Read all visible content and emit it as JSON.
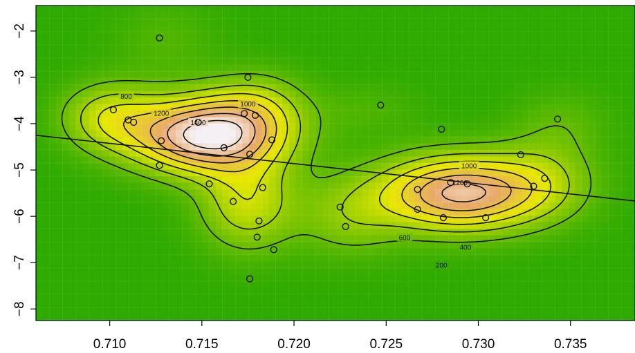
{
  "chart_data": {
    "type": "heatmap",
    "title": "",
    "xlabel": "",
    "ylabel": "",
    "xlim": [
      0.706,
      0.7385
    ],
    "ylim": [
      -8.25,
      -1.45
    ],
    "x_ticks": [
      {
        "value": 0.71,
        "label": "0.710"
      },
      {
        "value": 0.715,
        "label": "0.715"
      },
      {
        "value": 0.72,
        "label": "0.720"
      },
      {
        "value": 0.725,
        "label": "0.725"
      },
      {
        "value": 0.73,
        "label": "0.730"
      },
      {
        "value": 0.735,
        "label": "0.735"
      }
    ],
    "y_ticks": [
      {
        "value": -2,
        "label": "−2"
      },
      {
        "value": -3,
        "label": "−3"
      },
      {
        "value": -4,
        "label": "−4"
      },
      {
        "value": -5,
        "label": "−5"
      },
      {
        "value": -6,
        "label": "−6"
      },
      {
        "value": -7,
        "label": "−7"
      },
      {
        "value": -8,
        "label": "−8"
      }
    ],
    "grid": true,
    "colors": {
      "low": "#2eaa00",
      "mid": "#e8e800",
      "high": "#f4f0f4"
    },
    "density_peaks": [
      {
        "x": 0.7153,
        "y": -4.25,
        "height": 1500,
        "sx": 0.0028,
        "sy": 0.55
      },
      {
        "x": 0.71,
        "y": -3.85,
        "height": 500,
        "sx": 0.0018,
        "sy": 0.5
      },
      {
        "x": 0.7175,
        "y": -5.7,
        "height": 550,
        "sx": 0.0018,
        "sy": 0.7
      },
      {
        "x": 0.718,
        "y": -3.6,
        "height": 350,
        "sx": 0.0018,
        "sy": 0.5
      },
      {
        "x": 0.729,
        "y": -5.5,
        "height": 1250,
        "sx": 0.003,
        "sy": 0.55
      },
      {
        "x": 0.7335,
        "y": -5.2,
        "height": 300,
        "sx": 0.002,
        "sy": 0.6
      },
      {
        "x": 0.723,
        "y": -6.0,
        "height": 300,
        "sx": 0.002,
        "sy": 0.6
      },
      {
        "x": 0.7345,
        "y": -4.0,
        "height": 150,
        "sx": 0.0018,
        "sy": 0.5
      },
      {
        "x": 0.713,
        "y": -2.2,
        "height": 120,
        "sx": 0.002,
        "sy": 0.6
      },
      {
        "x": 0.724,
        "y": -3.7,
        "height": 100,
        "sx": 0.002,
        "sy": 0.4
      }
    ],
    "contour_levels": [
      200,
      400,
      600,
      800,
      1000,
      1200,
      1400
    ],
    "contour_labels": [
      {
        "text": "200",
        "x": 0.728,
        "y": -7.05
      },
      {
        "text": "400",
        "x": 0.7293,
        "y": -6.66
      },
      {
        "text": "600",
        "x": 0.726,
        "y": -6.45
      },
      {
        "text": "800",
        "x": 0.7109,
        "y": -3.4
      },
      {
        "text": "1000",
        "x": 0.7175,
        "y": -3.57
      },
      {
        "text": "1000",
        "x": 0.7295,
        "y": -4.9
      },
      {
        "text": "1200",
        "x": 0.7128,
        "y": -3.77
      },
      {
        "text": "1200",
        "x": 0.729,
        "y": -5.27
      },
      {
        "text": "1400",
        "x": 0.7148,
        "y": -3.97
      }
    ],
    "points": [
      {
        "x": 0.7127,
        "y": -2.15
      },
      {
        "x": 0.7175,
        "y": -3.0
      },
      {
        "x": 0.7102,
        "y": -3.7
      },
      {
        "x": 0.711,
        "y": -3.92
      },
      {
        "x": 0.7113,
        "y": -3.97
      },
      {
        "x": 0.7148,
        "y": -3.97
      },
      {
        "x": 0.7173,
        "y": -3.78
      },
      {
        "x": 0.7179,
        "y": -3.82
      },
      {
        "x": 0.7128,
        "y": -4.37
      },
      {
        "x": 0.7162,
        "y": -4.52
      },
      {
        "x": 0.7176,
        "y": -4.66
      },
      {
        "x": 0.7188,
        "y": -4.35
      },
      {
        "x": 0.7127,
        "y": -4.9
      },
      {
        "x": 0.7154,
        "y": -5.3
      },
      {
        "x": 0.7183,
        "y": -5.38
      },
      {
        "x": 0.7167,
        "y": -5.68
      },
      {
        "x": 0.7181,
        "y": -6.1
      },
      {
        "x": 0.718,
        "y": -6.45
      },
      {
        "x": 0.7189,
        "y": -6.72
      },
      {
        "x": 0.7176,
        "y": -7.35
      },
      {
        "x": 0.7225,
        "y": -5.8
      },
      {
        "x": 0.7228,
        "y": -6.22
      },
      {
        "x": 0.7247,
        "y": -3.6
      },
      {
        "x": 0.728,
        "y": -4.12
      },
      {
        "x": 0.7267,
        "y": -5.42
      },
      {
        "x": 0.7267,
        "y": -5.85
      },
      {
        "x": 0.7285,
        "y": -5.27
      },
      {
        "x": 0.7294,
        "y": -5.3
      },
      {
        "x": 0.7281,
        "y": -6.03
      },
      {
        "x": 0.7304,
        "y": -6.03
      },
      {
        "x": 0.7323,
        "y": -4.67
      },
      {
        "x": 0.733,
        "y": -5.35
      },
      {
        "x": 0.7336,
        "y": -5.18
      },
      {
        "x": 0.7343,
        "y": -3.9
      }
    ],
    "regression_line": [
      {
        "x": 0.706,
        "y": -4.25
      },
      {
        "x": 0.7385,
        "y": -5.67
      }
    ]
  }
}
